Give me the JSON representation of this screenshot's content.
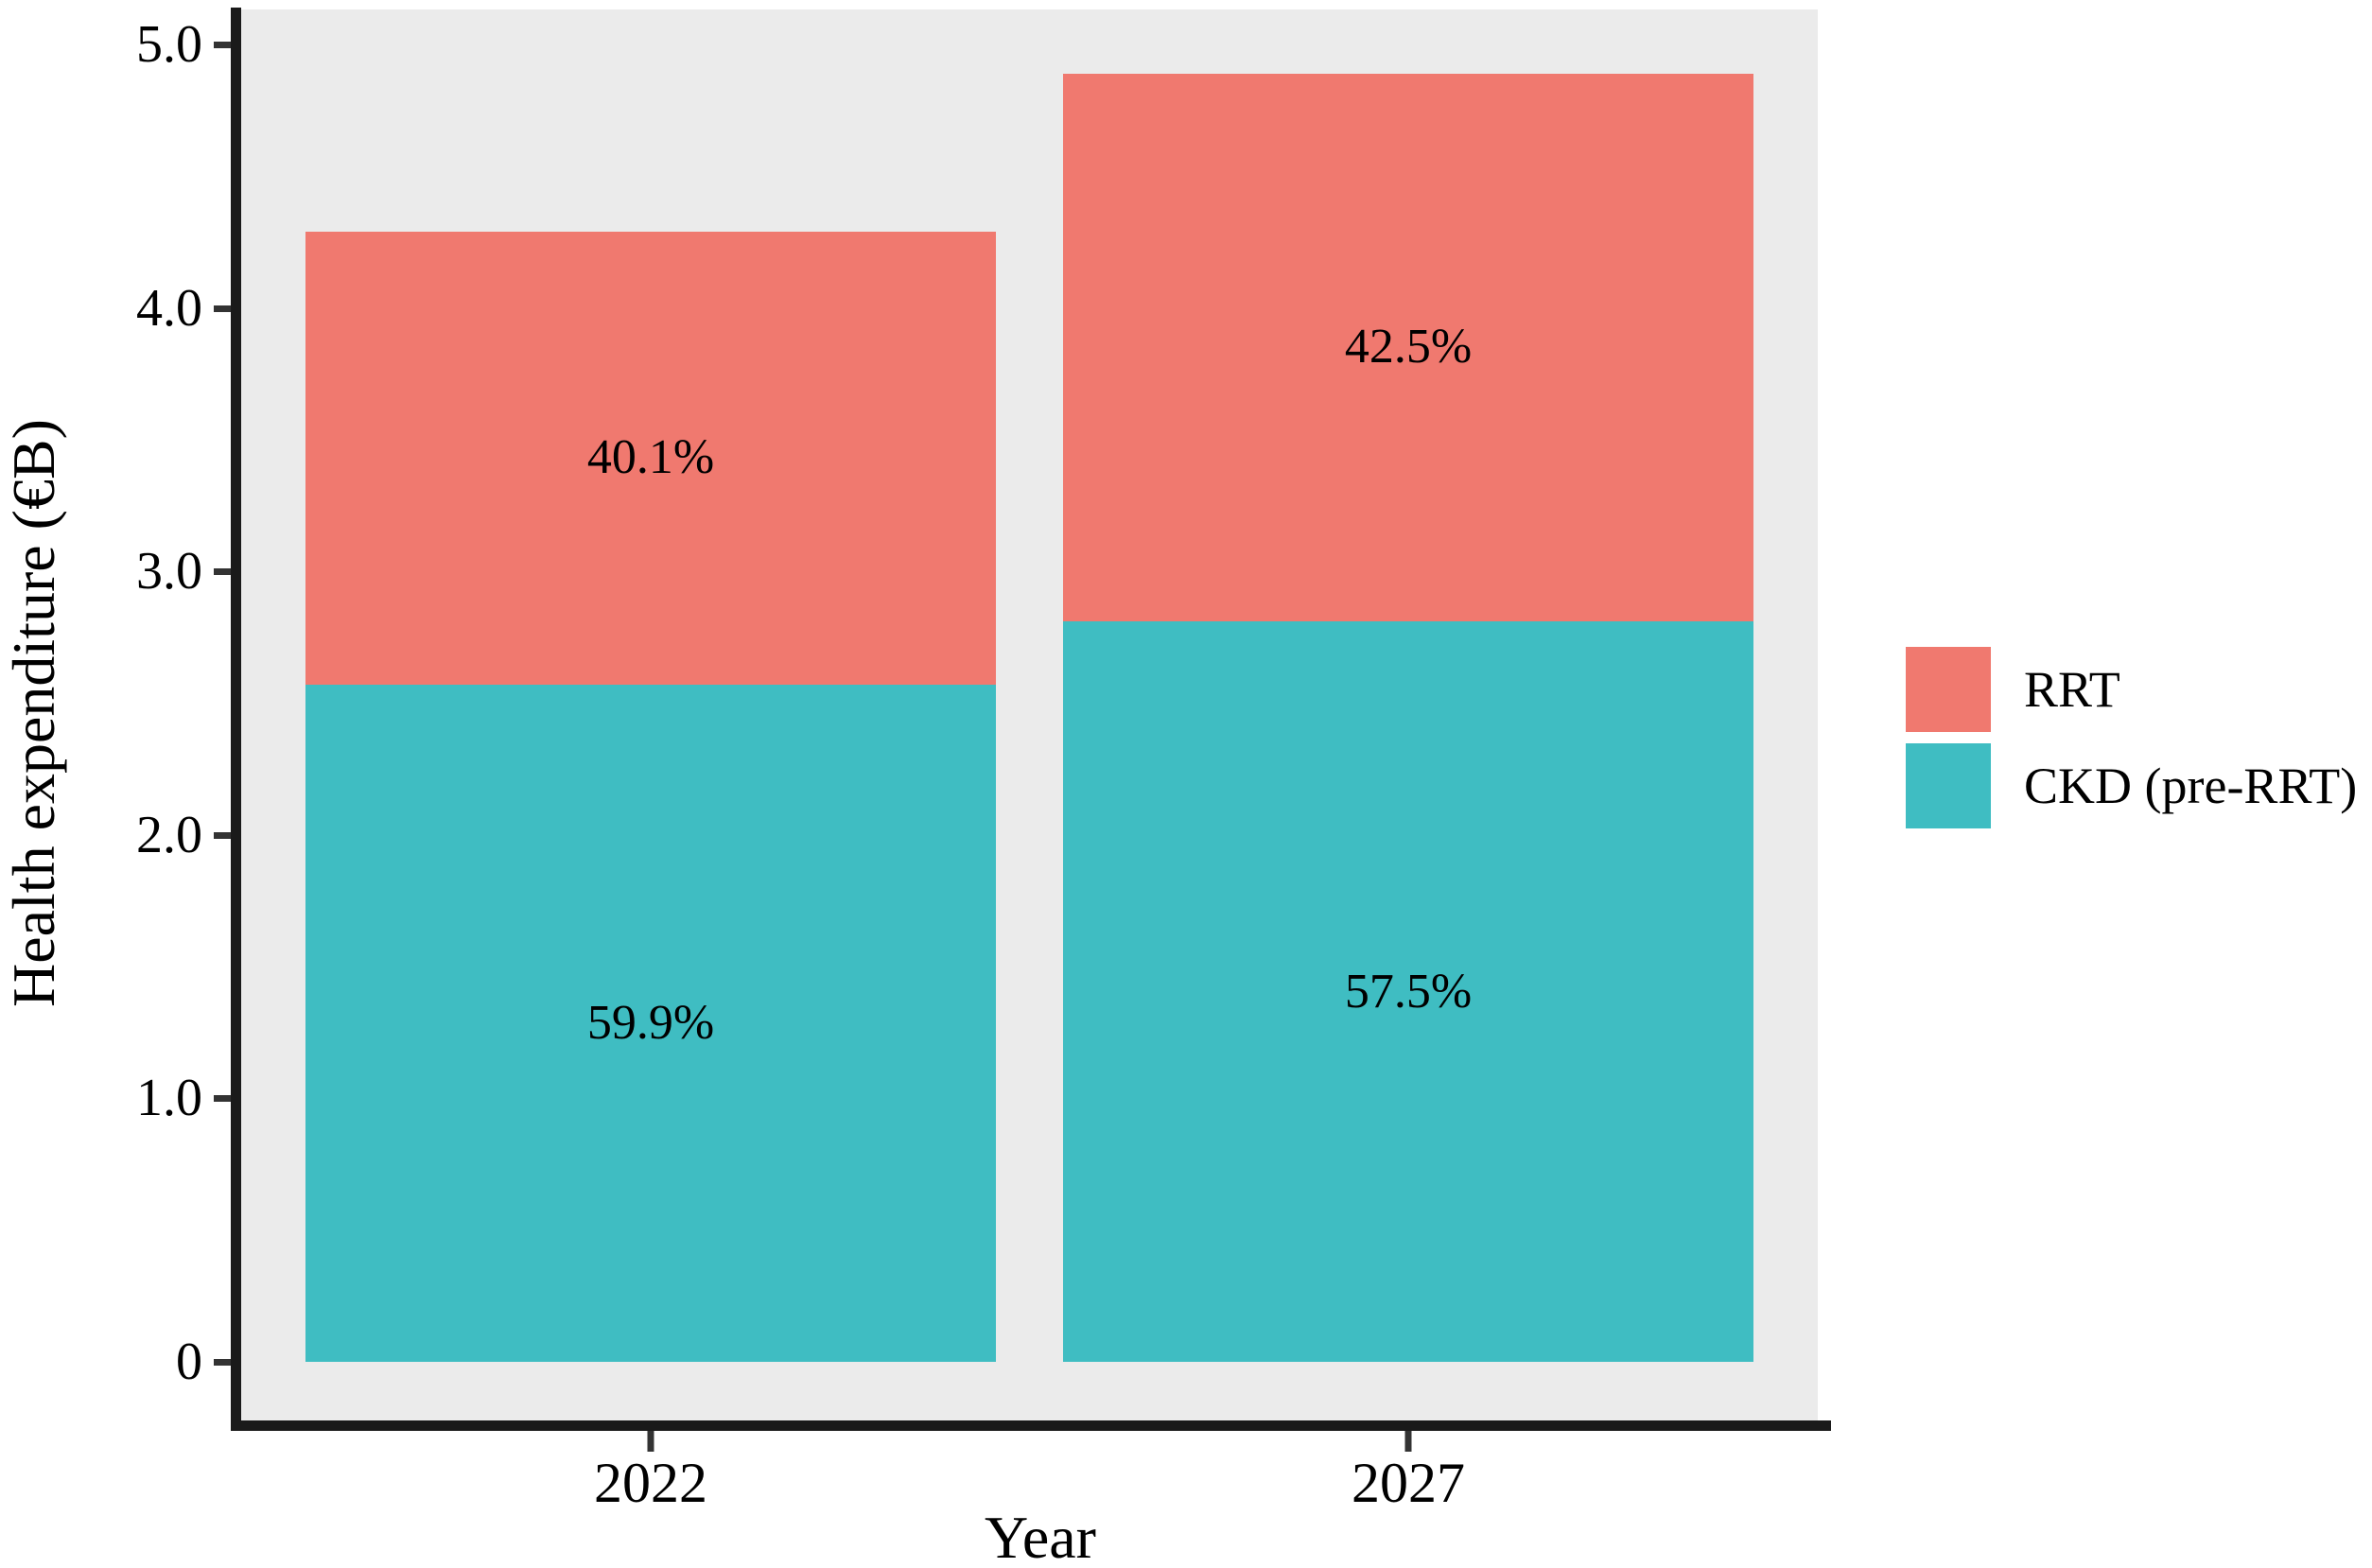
{
  "chart_data": {
    "type": "bar",
    "stacked": true,
    "title": "",
    "xlabel": "Year",
    "ylabel": "Health expenditure (€B)",
    "categories": [
      "2022",
      "2027"
    ],
    "series": [
      {
        "name": "CKD (pre-RRT)",
        "color": "#3FBDC2",
        "values": [
          2.57,
          2.81
        ],
        "segment_labels": [
          "59.9%",
          "57.5%"
        ]
      },
      {
        "name": "RRT",
        "color": "#F0796F",
        "values": [
          1.72,
          2.08
        ],
        "segment_labels": [
          "40.1%",
          "42.5%"
        ]
      }
    ],
    "totals": [
      4.29,
      4.89
    ],
    "ylim": [
      0,
      5.0
    ],
    "yticks": [
      0,
      1.0,
      2.0,
      3.0,
      4.0,
      5.0
    ],
    "ytick_labels": [
      "0",
      "1.0",
      "2.0",
      "3.0",
      "4.0",
      "5.0"
    ],
    "grid": false,
    "legend_position": "right",
    "legend": [
      {
        "label": "RRT",
        "color": "#F0796F"
      },
      {
        "label": "CKD (pre-RRT)",
        "color": "#3FBDC2"
      }
    ],
    "panel_background": "#EBEBEB",
    "axis_color": "#1A1A1A",
    "tick_color": "#333333",
    "label_color": "#000000"
  }
}
